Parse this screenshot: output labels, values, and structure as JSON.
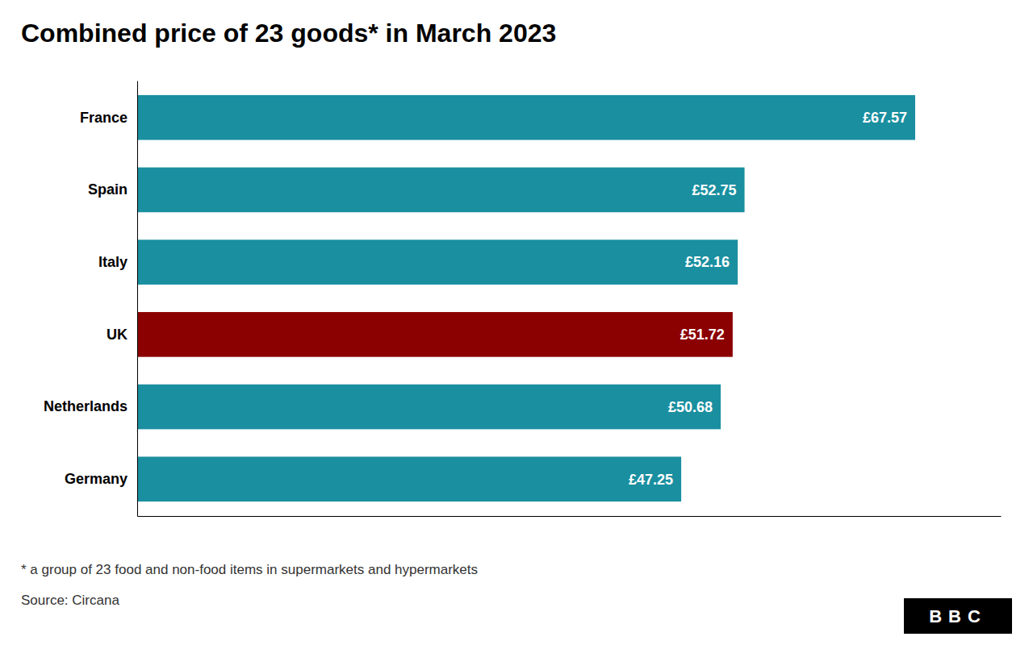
{
  "chart_data": {
    "type": "bar",
    "orientation": "horizontal",
    "title": "Combined price of 23 goods* in March 2023",
    "categories": [
      "France",
      "Spain",
      "Italy",
      "UK",
      "Netherlands",
      "Germany"
    ],
    "values": [
      67.57,
      52.75,
      52.16,
      51.72,
      50.68,
      47.25
    ],
    "value_labels": [
      "£67.57",
      "£52.75",
      "£52.16",
      "£51.72",
      "£50.68",
      "£47.25"
    ],
    "colors": [
      "#1a8fa0",
      "#1a8fa0",
      "#1a8fa0",
      "#8b0000",
      "#1a8fa0",
      "#1a8fa0"
    ],
    "xlim": [
      0,
      75
    ],
    "data_labels": true,
    "tick_labels": "y",
    "grid": false,
    "annotations": [
      "* a group of 23 food and non-food items in supermarkets and hypermarkets",
      "Source: Circana",
      "BBC"
    ]
  }
}
